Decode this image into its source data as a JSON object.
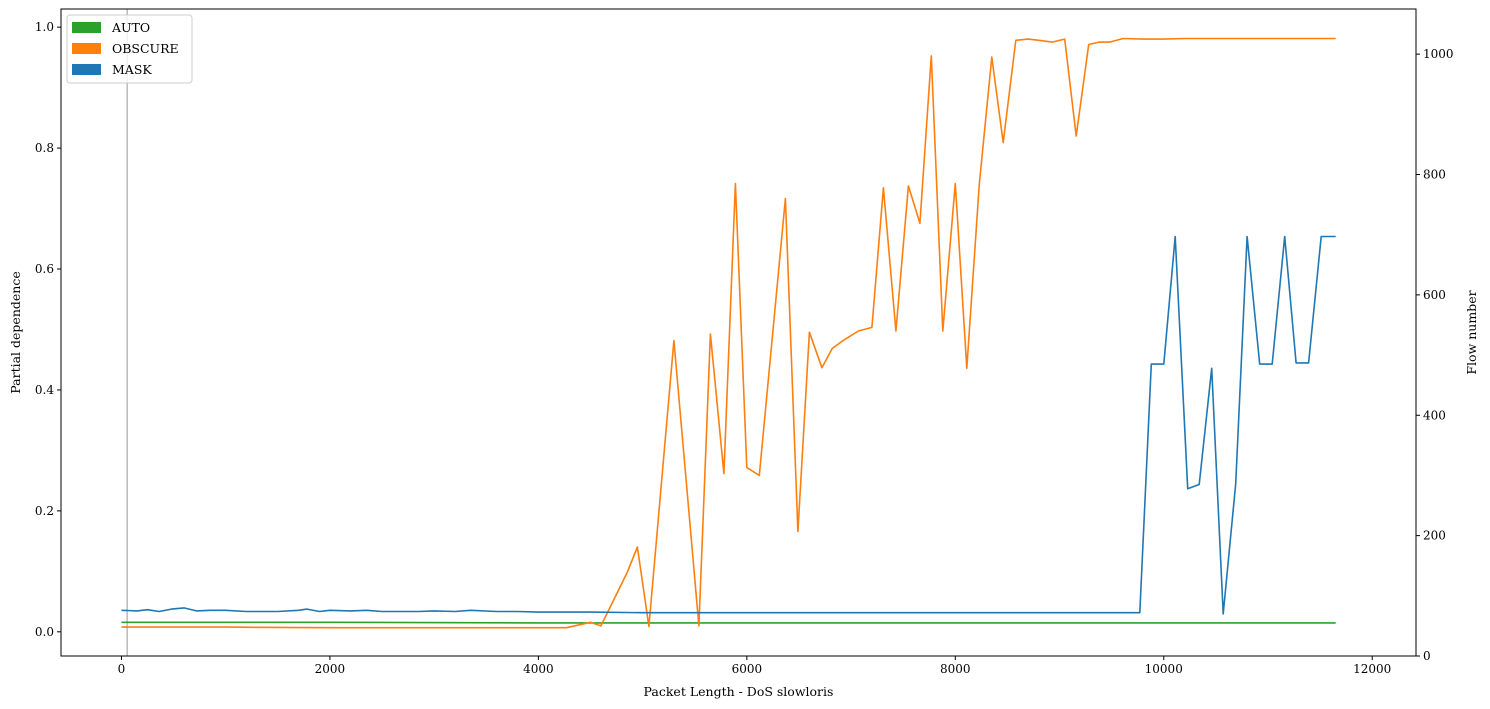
{
  "chart_data": {
    "type": "line",
    "xlabel": "Packet Length - DoS slowloris",
    "ylabel": "Partial dependence",
    "y2label": "Flow number",
    "xlim": [
      -580,
      12420
    ],
    "ylim": [
      -0.04,
      1.03
    ],
    "y2lim": [
      0,
      1075
    ],
    "x_ticks": [
      0,
      2000,
      4000,
      6000,
      8000,
      10000,
      12000
    ],
    "y_ticks": [
      0.0,
      0.2,
      0.4,
      0.6,
      0.8,
      1.0
    ],
    "y2_ticks": [
      0,
      200,
      400,
      600,
      800,
      1000
    ],
    "x_tick_labels": [
      "0",
      "2000",
      "4000",
      "6000",
      "8000",
      "10000",
      "12000"
    ],
    "y_tick_labels": [
      "0.0",
      "0.2",
      "0.4",
      "0.6",
      "0.8",
      "1.0"
    ],
    "y2_tick_labels": [
      "0",
      "200",
      "400",
      "600",
      "800",
      "1000"
    ],
    "vline_x": 55,
    "legend_position": "top-left",
    "legend": [
      {
        "label": "AUTO",
        "color": "#2ca02c"
      },
      {
        "label": "OBSCURE",
        "color": "#ff7f0e"
      },
      {
        "label": "MASK",
        "color": "#1f77b4"
      }
    ],
    "series": [
      {
        "name": "AUTO",
        "axis": "y2",
        "color": "#2ca02c",
        "x": [
          0,
          2000,
          4000,
          6000,
          8000,
          10000,
          11650
        ],
        "y": [
          56,
          56,
          55,
          55,
          55,
          55,
          55
        ]
      },
      {
        "name": "OBSCURE",
        "axis": "y2",
        "color": "#ff7f0e",
        "x": [
          0,
          1000,
          2000,
          3000,
          3800,
          4150,
          4270,
          4500,
          4600,
          4850,
          4950,
          5060,
          5300,
          5540,
          5650,
          5780,
          5890,
          6000,
          6120,
          6370,
          6490,
          6600,
          6720,
          6820,
          6940,
          7070,
          7200,
          7310,
          7430,
          7550,
          7660,
          7770,
          7880,
          8000,
          8110,
          8230,
          8350,
          8460,
          8580,
          8700,
          8800,
          8930,
          9050,
          9160,
          9280,
          9380,
          9480,
          9610,
          9800,
          10000,
          10200,
          10400,
          10600,
          10800,
          11000,
          11200,
          11400,
          11650
        ],
        "y": [
          48,
          48,
          47,
          47,
          47,
          47,
          47,
          56,
          50,
          138,
          181,
          49,
          524,
          50,
          535,
          303,
          785,
          313,
          300,
          760,
          207,
          538,
          479,
          511,
          526,
          540,
          546,
          778,
          540,
          781,
          719,
          997,
          540,
          785,
          478,
          784,
          995,
          853,
          1023,
          1025,
          1023,
          1020,
          1025,
          864,
          1016,
          1020,
          1020,
          1026,
          1025,
          1025,
          1026,
          1026,
          1026,
          1026,
          1026,
          1026,
          1026,
          1026
        ]
      },
      {
        "name": "MASK",
        "axis": "y2",
        "color": "#1f77b4",
        "x": [
          0,
          150,
          250,
          360,
          480,
          600,
          720,
          850,
          1000,
          1200,
          1500,
          1700,
          1780,
          1900,
          2000,
          2200,
          2350,
          2500,
          2700,
          2850,
          3000,
          3200,
          3350,
          3600,
          3800,
          4000,
          4300,
          4500,
          5000,
          5500,
          6000,
          6500,
          7000,
          7500,
          8000,
          8500,
          9000,
          9300,
          9500,
          9770,
          9880,
          10000,
          10110,
          10230,
          10340,
          10460,
          10570,
          10690,
          10800,
          10920,
          11040,
          11160,
          11270,
          11390,
          11510,
          11650
        ],
        "y": [
          76,
          75,
          77,
          74,
          78,
          80,
          75,
          76,
          76,
          74,
          74,
          76,
          78,
          74,
          76,
          75,
          76,
          74,
          74,
          74,
          75,
          74,
          76,
          74,
          74,
          73,
          73,
          73,
          72,
          72,
          72,
          72,
          72,
          72,
          72,
          72,
          72,
          72,
          72,
          72,
          485,
          485,
          697,
          278,
          285,
          478,
          70,
          286,
          697,
          485,
          485,
          697,
          487,
          487,
          697,
          697
        ]
      }
    ]
  }
}
